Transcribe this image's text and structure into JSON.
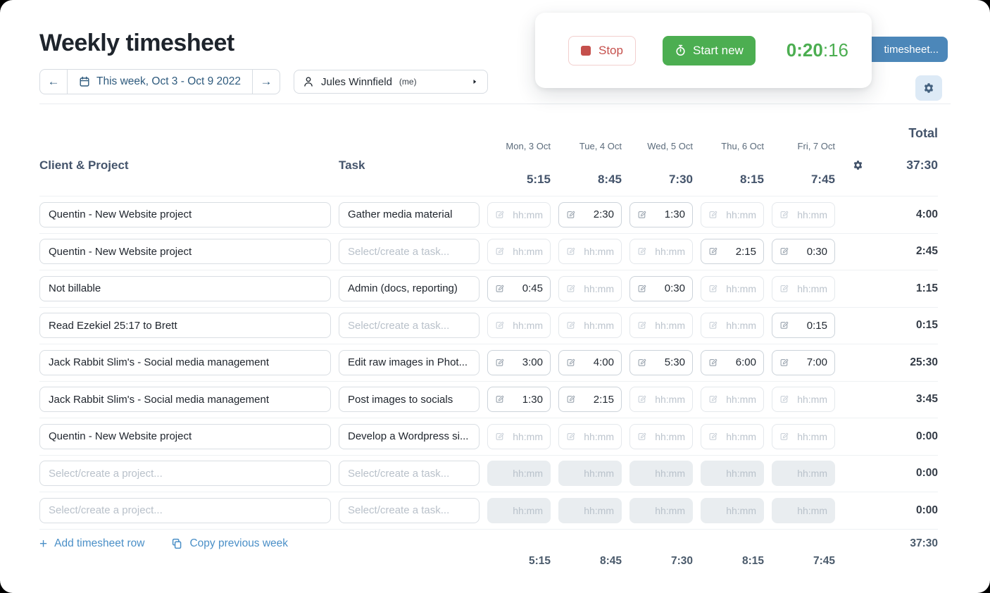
{
  "header": {
    "title": "Weekly timesheet",
    "week_nav": {
      "label": "This week, Oct 3 - Oct 9 2022"
    },
    "person": {
      "name": "Jules Winnfield",
      "suffix": "(me)"
    }
  },
  "timer_popover": {
    "stop_label": "Stop",
    "start_new_label": "Start new",
    "elapsed_main": "0:20",
    "elapsed_seconds": ":16"
  },
  "overflow_button": {
    "label": "timesheet..."
  },
  "table": {
    "columns": {
      "client_project": "Client & Project",
      "task": "Task",
      "total": "Total"
    },
    "days": [
      {
        "label": "Mon, 3 Oct",
        "total": "5:15"
      },
      {
        "label": "Tue, 4 Oct",
        "total": "8:45"
      },
      {
        "label": "Wed, 5 Oct",
        "total": "7:30"
      },
      {
        "label": "Thu, 6 Oct",
        "total": "8:15"
      },
      {
        "label": "Fri, 7 Oct",
        "total": "7:45"
      }
    ],
    "week_total": "37:30",
    "placeholders": {
      "project": "Select/create a project...",
      "task": "Select/create a task...",
      "time": "hh:mm"
    },
    "rows": [
      {
        "project": "Quentin - New Website project",
        "task": "Gather media material",
        "times": [
          "",
          "2:30",
          "1:30",
          "",
          ""
        ],
        "total": "4:00",
        "disabled": false
      },
      {
        "project": "Quentin - New Website project",
        "task": "",
        "times": [
          "",
          "",
          "",
          "2:15",
          "0:30"
        ],
        "total": "2:45",
        "disabled": false
      },
      {
        "project": "Not billable",
        "task": "Admin (docs, reporting)",
        "times": [
          "0:45",
          "",
          "0:30",
          "",
          ""
        ],
        "total": "1:15",
        "disabled": false
      },
      {
        "project": "Read Ezekiel 25:17 to Brett",
        "task": "",
        "times": [
          "",
          "",
          "",
          "",
          "0:15"
        ],
        "total": "0:15",
        "disabled": false
      },
      {
        "project": "Jack Rabbit Slim's - Social media management",
        "task": "Edit raw images in Phot...",
        "times": [
          "3:00",
          "4:00",
          "5:30",
          "6:00",
          "7:00"
        ],
        "total": "25:30",
        "disabled": false
      },
      {
        "project": "Jack Rabbit Slim's - Social media management",
        "task": "Post images to socials",
        "times": [
          "1:30",
          "2:15",
          "",
          "",
          ""
        ],
        "total": "3:45",
        "disabled": false
      },
      {
        "project": "Quentin - New Website project",
        "task": "Develop a Wordpress si...",
        "times": [
          "",
          "",
          "",
          "",
          ""
        ],
        "total": "0:00",
        "disabled": false
      },
      {
        "project": "",
        "task": "",
        "times": [
          "",
          "",
          "",
          "",
          ""
        ],
        "total": "0:00",
        "disabled": true
      },
      {
        "project": "",
        "task": "",
        "times": [
          "",
          "",
          "",
          "",
          ""
        ],
        "total": "0:00",
        "disabled": true
      }
    ],
    "footer": {
      "day_totals": [
        "5:15",
        "8:45",
        "7:30",
        "8:15",
        "7:45"
      ],
      "week_total": "37:30"
    }
  },
  "actions": {
    "add_row": "Add timesheet row",
    "copy_week": "Copy previous week"
  },
  "colors": {
    "green": "#4cae51",
    "red": "#c5504c",
    "blue_button": "#4c87b9",
    "link_blue": "#4a8fc7",
    "nav_blue": "#2e5a7d",
    "header_text": "#44546b"
  }
}
